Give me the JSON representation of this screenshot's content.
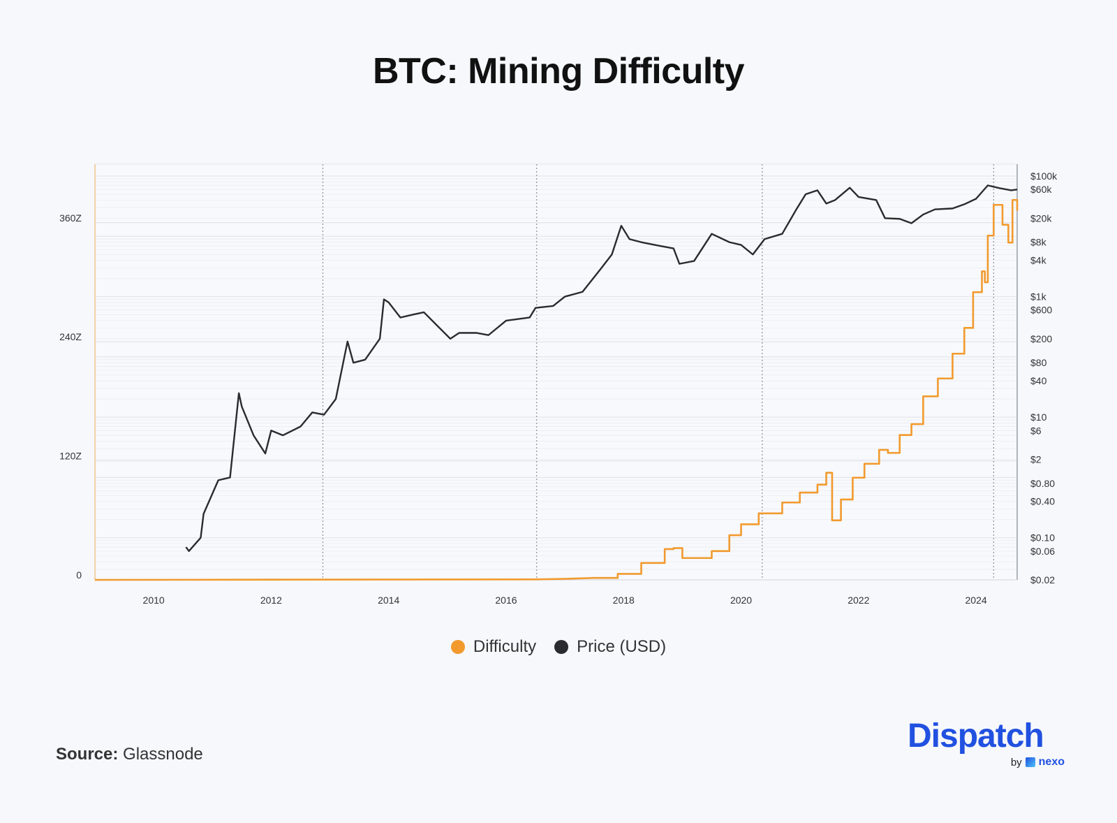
{
  "title": "BTC: Mining Difficulty",
  "source_label": "Source:",
  "source_value": "Glassnode",
  "logo": {
    "word": "Dispatch",
    "by": "by",
    "brand": "nexo"
  },
  "chart_data": {
    "type": "line",
    "title": "BTC: Mining Difficulty",
    "xlabel": "",
    "x_ticks": [
      "2010",
      "2012",
      "2014",
      "2016",
      "2018",
      "2020",
      "2022",
      "2024"
    ],
    "xlim": [
      2009.0,
      2024.7
    ],
    "left_axis": {
      "ticks": [
        "0",
        "120Z",
        "240Z",
        "360Z"
      ],
      "tick_values": [
        0,
        120,
        240,
        360
      ],
      "ylim": [
        0,
        420
      ],
      "unit": "Z"
    },
    "right_axis": {
      "scale": "log",
      "ticks": [
        "$100k",
        "$60k",
        "$20k",
        "$8k",
        "$4k",
        "$1k",
        "$600",
        "$200",
        "$80",
        "$40",
        "$10",
        "$6",
        "$2",
        "$0.80",
        "$0.40",
        "$0.10",
        "$0.06",
        "$0.02"
      ],
      "tick_values": [
        100000,
        60000,
        20000,
        8000,
        4000,
        1000,
        600,
        200,
        80,
        40,
        10,
        6,
        2,
        0.8,
        0.4,
        0.1,
        0.06,
        0.02
      ],
      "ylim": [
        0.02,
        100000
      ]
    },
    "vertical_markers": [
      2012.88,
      2016.52,
      2020.36,
      2024.3
    ],
    "grid": true,
    "legend_position": "bottom",
    "series": [
      {
        "name": "Difficulty",
        "axis": "left",
        "color": "#f29a2e",
        "step": true,
        "x": [
          2009.0,
          2016.5,
          2017.0,
          2017.5,
          2017.9,
          2018.3,
          2018.7,
          2018.85,
          2019.0,
          2019.5,
          2019.8,
          2020.0,
          2020.3,
          2020.5,
          2020.7,
          2021.0,
          2021.3,
          2021.45,
          2021.55,
          2021.7,
          2021.9,
          2022.1,
          2022.35,
          2022.5,
          2022.7,
          2022.9,
          2023.1,
          2023.35,
          2023.6,
          2023.8,
          2023.95,
          2024.1,
          2024.15,
          2024.2,
          2024.3,
          2024.45,
          2024.55,
          2024.62,
          2024.7
        ],
        "values": [
          0,
          0.5,
          1,
          2,
          6,
          17,
          31,
          32,
          22,
          29,
          45,
          56,
          67,
          67,
          78,
          88,
          96,
          108,
          60,
          81,
          103,
          117,
          131,
          128,
          146,
          157,
          185,
          203,
          228,
          254,
          290,
          311,
          300,
          347,
          378,
          358,
          340,
          383,
          372
        ]
      },
      {
        "name": "Price (USD)",
        "axis": "right",
        "color": "#2b2b2e",
        "x": [
          2010.55,
          2010.6,
          2010.8,
          2010.85,
          2011.1,
          2011.3,
          2011.45,
          2011.5,
          2011.7,
          2011.9,
          2012.0,
          2012.2,
          2012.5,
          2012.7,
          2012.9,
          2013.1,
          2013.3,
          2013.4,
          2013.6,
          2013.85,
          2013.92,
          2014.0,
          2014.2,
          2014.4,
          2014.6,
          2014.8,
          2015.05,
          2015.2,
          2015.5,
          2015.7,
          2016.0,
          2016.4,
          2016.5,
          2016.8,
          2017.0,
          2017.3,
          2017.6,
          2017.8,
          2017.96,
          2018.1,
          2018.3,
          2018.6,
          2018.85,
          2018.95,
          2019.2,
          2019.5,
          2019.8,
          2020.0,
          2020.2,
          2020.4,
          2020.7,
          2020.95,
          2021.1,
          2021.3,
          2021.45,
          2021.6,
          2021.85,
          2022.0,
          2022.3,
          2022.45,
          2022.7,
          2022.9,
          2023.1,
          2023.3,
          2023.6,
          2023.8,
          2024.0,
          2024.2,
          2024.4,
          2024.6,
          2024.7
        ],
        "values": [
          0.07,
          0.06,
          0.1,
          0.25,
          0.9,
          1.0,
          25,
          15,
          5,
          2.5,
          6,
          5,
          7,
          12,
          11,
          20,
          180,
          80,
          90,
          200,
          900,
          800,
          450,
          500,
          550,
          350,
          200,
          250,
          250,
          230,
          400,
          450,
          650,
          700,
          1000,
          1200,
          2800,
          5000,
          15000,
          9000,
          8000,
          7000,
          6300,
          3500,
          3900,
          11000,
          8000,
          7200,
          5000,
          9000,
          11000,
          29000,
          50000,
          58000,
          35000,
          40000,
          64000,
          45000,
          40000,
          20000,
          19500,
          16500,
          23000,
          28000,
          29000,
          34000,
          42000,
          70000,
          63000,
          58000,
          60000
        ]
      }
    ]
  }
}
